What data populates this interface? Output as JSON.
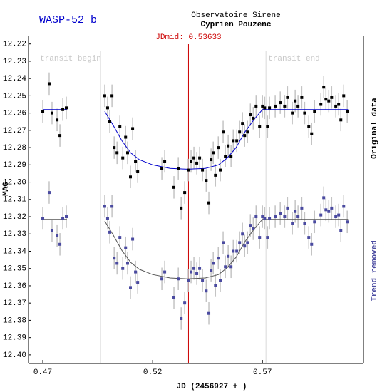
{
  "chart_data": {
    "type": "scatter",
    "title": "WASP-52 b",
    "observatory": "Observatoire Sirene",
    "observer": "Cyprien Pouzenc",
    "x_label": "JD (2456927 + )",
    "y_label": "MAG",
    "xlim": [
      0.4635,
      0.616
    ],
    "ylim": [
      12.405,
      12.216
    ],
    "xticks": [
      0.47,
      0.52,
      0.57
    ],
    "yticks": [
      12.22,
      12.23,
      12.24,
      12.25,
      12.26,
      12.27,
      12.28,
      12.29,
      {
        "value": 12.3,
        "label": "12.30"
      },
      12.31,
      12.32,
      12.33,
      12.34,
      12.35,
      12.36,
      12.37,
      12.38,
      12.39,
      {
        "value": 12.4,
        "label": "12.40"
      }
    ],
    "grid": false,
    "transit_begin": {
      "label": "transit begin",
      "x": 0.4963
    },
    "transit_end": {
      "label": "transit end",
      "x": 0.5716
    },
    "jdmid": {
      "label": "JDmid: 0.53633",
      "x": 0.53633,
      "color": "#cc0000"
    },
    "series": [
      {
        "name": "Original data",
        "color": "#000000",
        "error": 0.0065,
        "x": [
          0.47,
          0.4729,
          0.4742,
          0.4765,
          0.4778,
          0.4791,
          0.4807,
          0.4982,
          0.4995,
          0.5005,
          0.5015,
          0.5025,
          0.5038,
          0.5051,
          0.5064,
          0.5077,
          0.5086,
          0.5099,
          0.5109,
          0.5122,
          0.5132,
          0.5242,
          0.5255,
          0.5297,
          0.5317,
          0.533,
          0.5346,
          0.5362,
          0.5375,
          0.5388,
          0.5401,
          0.5414,
          0.5427,
          0.5444,
          0.5456,
          0.5466,
          0.5476,
          0.5486,
          0.5499,
          0.5508,
          0.5521,
          0.5531,
          0.5544,
          0.5557,
          0.5567,
          0.5583,
          0.5596,
          0.5609,
          0.5619,
          0.5632,
          0.5645,
          0.5658,
          0.5671,
          0.5687,
          0.57,
          0.571,
          0.5723,
          0.5732,
          0.5758,
          0.5781,
          0.5801,
          0.5814,
          0.5836,
          0.5849,
          0.5862,
          0.5879,
          0.5892,
          0.5911,
          0.5924,
          0.5937,
          0.5966,
          0.5979,
          0.5989,
          0.6002,
          0.6015,
          0.6034,
          0.6047,
          0.6057,
          0.607,
          0.6086
        ],
        "y": [
          12.259,
          12.243,
          12.26,
          12.264,
          12.273,
          12.258,
          12.257,
          12.25,
          12.257,
          12.265,
          12.25,
          12.28,
          12.283,
          12.268,
          12.286,
          12.274,
          12.283,
          12.297,
          12.269,
          12.288,
          12.294,
          12.292,
          12.288,
          12.303,
          12.292,
          12.315,
          12.306,
          12.293,
          12.288,
          12.286,
          12.289,
          12.286,
          12.293,
          12.299,
          12.312,
          12.287,
          12.283,
          12.296,
          12.28,
          12.293,
          12.271,
          12.285,
          12.279,
          12.285,
          12.276,
          12.276,
          12.271,
          12.266,
          12.273,
          12.271,
          12.261,
          12.263,
          12.256,
          12.268,
          12.256,
          12.257,
          12.268,
          12.257,
          12.256,
          12.254,
          12.256,
          12.251,
          12.26,
          12.253,
          12.256,
          12.251,
          12.26,
          12.268,
          12.272,
          12.259,
          12.255,
          12.245,
          12.252,
          12.253,
          12.251,
          12.256,
          12.255,
          12.264,
          12.25,
          12.259
        ]
      },
      {
        "name": "Trend removed",
        "color": "#4a4aa0",
        "error": 0.0065,
        "x": [
          0.47,
          0.4729,
          0.4742,
          0.4765,
          0.4778,
          0.4791,
          0.4807,
          0.4982,
          0.4995,
          0.5005,
          0.5015,
          0.5025,
          0.5038,
          0.5051,
          0.5064,
          0.5077,
          0.5086,
          0.5099,
          0.5109,
          0.5122,
          0.5132,
          0.5242,
          0.5255,
          0.5297,
          0.5317,
          0.533,
          0.5346,
          0.5362,
          0.5375,
          0.5388,
          0.5401,
          0.5414,
          0.5427,
          0.5444,
          0.5456,
          0.5466,
          0.5476,
          0.5486,
          0.5499,
          0.5508,
          0.5521,
          0.5531,
          0.5544,
          0.5557,
          0.5567,
          0.5583,
          0.5596,
          0.5609,
          0.5619,
          0.5632,
          0.5645,
          0.5658,
          0.5671,
          0.5687,
          0.57,
          0.571,
          0.5723,
          0.5732,
          0.5758,
          0.5781,
          0.5801,
          0.5814,
          0.5836,
          0.5849,
          0.5862,
          0.5879,
          0.5892,
          0.5911,
          0.5924,
          0.5937,
          0.5966,
          0.5979,
          0.5989,
          0.6002,
          0.6015,
          0.6034,
          0.6047,
          0.6057,
          0.607,
          0.6086
        ],
        "y": [
          12.321,
          12.306,
          12.328,
          12.331,
          12.336,
          12.321,
          12.32,
          12.314,
          12.321,
          12.329,
          12.314,
          12.344,
          12.347,
          12.332,
          12.35,
          12.338,
          12.347,
          12.361,
          12.333,
          12.352,
          12.358,
          12.356,
          12.352,
          12.367,
          12.356,
          12.379,
          12.37,
          12.357,
          12.352,
          12.35,
          12.353,
          12.35,
          12.357,
          12.363,
          12.376,
          12.351,
          12.347,
          12.36,
          12.344,
          12.357,
          12.335,
          12.349,
          12.343,
          12.349,
          12.34,
          12.34,
          12.335,
          12.33,
          12.337,
          12.335,
          12.325,
          12.327,
          12.32,
          12.332,
          12.32,
          12.321,
          12.332,
          12.321,
          12.32,
          12.318,
          12.32,
          12.315,
          12.324,
          12.317,
          12.32,
          12.315,
          12.324,
          12.332,
          12.336,
          12.323,
          12.319,
          12.309,
          12.316,
          12.317,
          12.315,
          12.32,
          12.319,
          12.328,
          12.314,
          12.323
        ]
      }
    ],
    "fits": [
      {
        "color": "#0000cc",
        "x": [
          0.47,
          0.481,
          0.49,
          0.4982,
          0.502,
          0.506,
          0.51,
          0.514,
          0.52,
          0.528,
          0.536,
          0.544,
          0.55,
          0.554,
          0.558,
          0.562,
          0.566,
          0.57,
          0.574,
          0.609
        ],
        "y": [
          12.258,
          12.258,
          null,
          12.259,
          12.267,
          12.276,
          12.283,
          12.287,
          12.29,
          12.292,
          12.2925,
          12.292,
          12.29,
          12.286,
          12.28,
          12.271,
          12.264,
          12.258,
          12.258,
          12.258
        ]
      },
      {
        "color": "#555555",
        "x": [
          0.47,
          0.481,
          0.49,
          0.4982,
          0.502,
          0.506,
          0.51,
          0.514,
          0.52,
          0.528,
          0.536,
          0.544,
          0.55,
          0.554,
          0.558,
          0.562,
          0.566,
          0.57,
          0.574,
          0.609
        ],
        "y": [
          12.3215,
          12.3215,
          null,
          12.3225,
          12.3305,
          12.3395,
          12.3465,
          12.3505,
          12.3535,
          12.3555,
          12.356,
          12.3555,
          12.3535,
          12.3495,
          12.3435,
          12.3345,
          12.3275,
          12.3215,
          12.3215,
          12.3215
        ]
      }
    ]
  }
}
